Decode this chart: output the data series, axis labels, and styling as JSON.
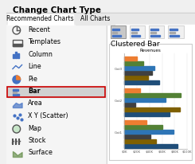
{
  "bg_color": "#f0f0f0",
  "title": "Change Chart Type",
  "tab1": "Recommended Charts",
  "tab2": "All Charts",
  "menu_items": [
    "Recent",
    "Templates",
    "Column",
    "Line",
    "Pie",
    "Bar",
    "Area",
    "X Y (Scatter)",
    "Map",
    "Stock",
    "Surface"
  ],
  "highlighted_item": "Bar",
  "section_title": "Clustered Bar",
  "chart_title": "Revenues",
  "series_colors": [
    "#1f4e79",
    "#7f6000",
    "#404040",
    "#2e75b6",
    "#538135",
    "#ed7d31"
  ],
  "highlight_bg": "#d0d0d0",
  "highlight_border": "#cc0000",
  "values": [
    [
      0.85,
      0.5,
      0.42,
      0.78,
      0.6,
      0.35
    ],
    [
      0.72,
      0.88,
      0.18,
      0.65,
      0.9,
      0.25
    ],
    [
      0.55,
      0.38,
      0.44,
      0.48,
      0.3,
      0.2
    ]
  ]
}
